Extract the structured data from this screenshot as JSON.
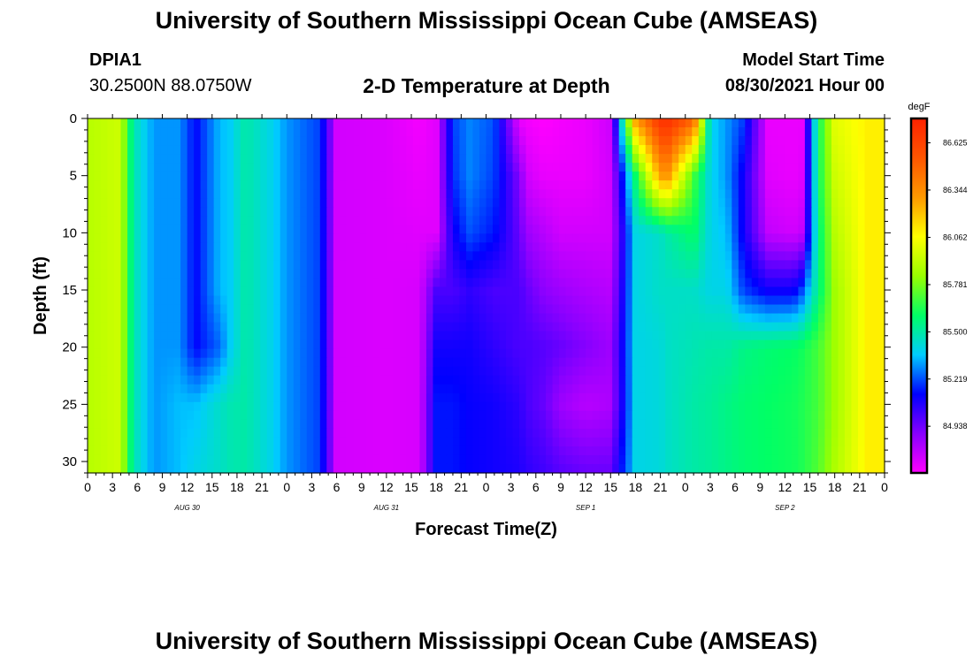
{
  "header": {
    "title": "University of Southern Mississippi Ocean Cube (AMSEAS)",
    "station_id": "DPIA1",
    "coords": "30.2500N  88.0750W",
    "chart_title": "2-D Temperature at Depth",
    "model_start_label": "Model Start Time",
    "model_start_value": "08/30/2021 Hour 00"
  },
  "footer": {
    "title": "University of Southern Mississippi Ocean Cube (AMSEAS)"
  },
  "chart_data": {
    "type": "heatmap",
    "title": "2-D Temperature at Depth",
    "xlabel": "Forecast Time(Z)",
    "ylabel": "Depth (ft)",
    "x_ticks": [
      "0",
      "3",
      "6",
      "9",
      "12",
      "15",
      "18",
      "21",
      "0",
      "3",
      "6",
      "9",
      "12",
      "15",
      "18",
      "21",
      "0",
      "3",
      "6",
      "9",
      "12",
      "15",
      "18",
      "21",
      "0",
      "3",
      "6",
      "9",
      "12",
      "15",
      "18",
      "21",
      "0"
    ],
    "x_range_hours": [
      0,
      96
    ],
    "day_labels": [
      {
        "hour": 12,
        "label": "AUG 30"
      },
      {
        "hour": 36,
        "label": "AUG 31"
      },
      {
        "hour": 60,
        "label": "SEP 1"
      },
      {
        "hour": 84,
        "label": "SEP 2"
      }
    ],
    "y_ticks": [
      0,
      5,
      10,
      15,
      20,
      25,
      30
    ],
    "ylim": [
      0,
      31
    ],
    "colorbar": {
      "unit": "degF",
      "ticks": [
        86.625,
        86.344,
        86.062,
        85.781,
        85.5,
        85.219,
        84.938
      ],
      "range": [
        84.66,
        86.77
      ],
      "colors": [
        "#ff00ff",
        "#8800ff",
        "#0000ff",
        "#00ccff",
        "#00ff66",
        "#99ff00",
        "#ffff00",
        "#ff9900",
        "#ff5500",
        "#ff2200"
      ]
    },
    "time_hours": [
      0,
      4,
      5,
      6,
      8,
      11,
      13,
      16,
      17,
      19,
      22,
      24,
      28,
      30,
      36,
      40,
      42,
      44,
      46,
      49,
      52,
      53,
      55,
      57,
      60,
      63,
      66,
      69,
      70,
      73,
      75,
      77,
      79,
      82,
      85,
      86,
      88,
      90,
      94,
      96
    ],
    "depths_ft": [
      0,
      5,
      10,
      15,
      20,
      25,
      31
    ],
    "values_degF": [
      [
        85.9,
        85.95,
        85.6,
        85.45,
        85.3,
        85.3,
        85.13,
        85.35,
        85.36,
        85.5,
        85.4,
        85.3,
        85.2,
        84.75,
        84.73,
        84.68,
        84.72,
        85.2,
        85.28,
        85.22,
        84.7,
        84.68,
        84.66,
        84.68,
        84.7,
        84.76,
        86.3,
        86.7,
        86.7,
        86.5,
        85.4,
        85.3,
        85.2,
        84.7,
        84.7,
        84.7,
        85.6,
        86.0,
        86.1,
        86.1
      ],
      [
        85.9,
        85.95,
        85.6,
        85.45,
        85.3,
        85.3,
        85.13,
        85.35,
        85.36,
        85.5,
        85.4,
        85.3,
        85.2,
        84.75,
        84.73,
        84.7,
        84.72,
        85.18,
        85.28,
        85.2,
        84.9,
        84.75,
        84.7,
        84.7,
        84.7,
        84.75,
        85.6,
        86.3,
        86.3,
        85.7,
        85.4,
        85.3,
        85.1,
        84.72,
        84.7,
        84.72,
        85.6,
        85.95,
        86.1,
        86.1
      ],
      [
        85.9,
        85.95,
        85.6,
        85.45,
        85.3,
        85.3,
        85.13,
        85.35,
        85.36,
        85.5,
        85.4,
        85.3,
        85.2,
        84.75,
        84.73,
        84.72,
        84.72,
        85.1,
        85.22,
        85.15,
        84.95,
        84.85,
        84.8,
        84.75,
        84.75,
        84.75,
        85.4,
        85.45,
        85.5,
        85.6,
        85.4,
        85.35,
        85.1,
        84.78,
        84.75,
        84.78,
        85.55,
        85.9,
        86.1,
        86.1
      ],
      [
        85.9,
        85.95,
        85.6,
        85.45,
        85.3,
        85.3,
        85.13,
        85.35,
        85.36,
        85.5,
        85.4,
        85.3,
        85.2,
        84.75,
        84.73,
        84.74,
        85.0,
        85.0,
        85.05,
        85.0,
        85.0,
        84.95,
        84.88,
        84.85,
        84.82,
        84.8,
        85.4,
        85.45,
        85.45,
        85.45,
        85.4,
        85.4,
        85.2,
        85.1,
        85.1,
        85.2,
        85.55,
        85.85,
        86.1,
        86.1
      ],
      [
        85.9,
        85.95,
        85.6,
        85.45,
        85.3,
        85.3,
        85.13,
        85.25,
        85.36,
        85.5,
        85.4,
        85.3,
        85.2,
        84.75,
        84.73,
        84.74,
        85.1,
        85.1,
        85.1,
        85.05,
        85.0,
        85.0,
        84.98,
        84.95,
        84.9,
        84.85,
        85.4,
        85.42,
        85.45,
        85.48,
        85.5,
        85.5,
        85.55,
        85.58,
        85.6,
        85.62,
        85.7,
        85.85,
        86.1,
        86.1
      ],
      [
        85.9,
        85.95,
        85.6,
        85.45,
        85.3,
        85.35,
        85.35,
        85.45,
        85.48,
        85.5,
        85.4,
        85.3,
        85.2,
        84.75,
        84.73,
        84.74,
        85.15,
        85.15,
        85.12,
        85.1,
        85.05,
        85.0,
        84.95,
        84.85,
        84.8,
        84.82,
        85.4,
        85.42,
        85.45,
        85.5,
        85.52,
        85.55,
        85.58,
        85.6,
        85.62,
        85.64,
        85.7,
        85.85,
        86.1,
        86.1
      ],
      [
        85.9,
        85.95,
        85.6,
        85.45,
        85.3,
        85.35,
        85.4,
        85.45,
        85.48,
        85.5,
        85.4,
        85.3,
        85.2,
        84.75,
        84.73,
        84.74,
        85.15,
        85.15,
        85.12,
        85.1,
        85.08,
        85.05,
        85.02,
        84.98,
        84.95,
        84.95,
        85.4,
        85.42,
        85.45,
        85.5,
        85.52,
        85.55,
        85.58,
        85.6,
        85.62,
        85.64,
        85.72,
        85.88,
        86.1,
        86.1
      ]
    ]
  }
}
